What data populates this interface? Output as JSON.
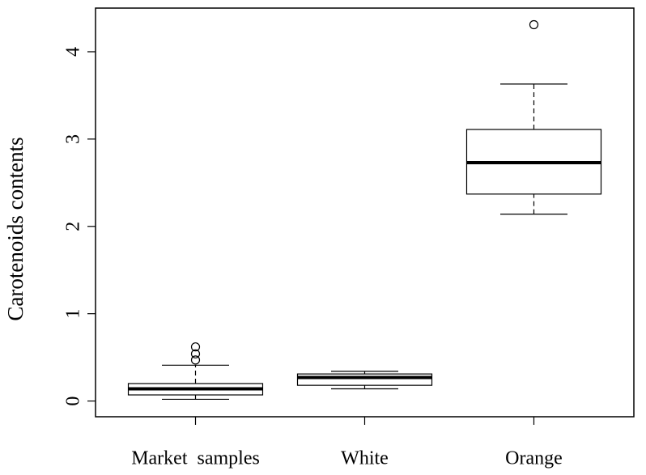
{
  "chart_data": {
    "type": "box",
    "y_label": "Carotenoids contents",
    "categories": [
      "Market  samples",
      "White",
      "Orange"
    ],
    "boxes": [
      {
        "low": 0.02,
        "q1": 0.07,
        "median": 0.14,
        "q3": 0.2,
        "high": 0.41,
        "outliers": [
          0.47,
          0.54,
          0.62
        ]
      },
      {
        "low": 0.14,
        "q1": 0.18,
        "median": 0.27,
        "q3": 0.31,
        "high": 0.34,
        "outliers": []
      },
      {
        "low": 2.14,
        "q1": 2.37,
        "median": 2.73,
        "q3": 3.11,
        "high": 3.63,
        "outliers": [
          4.31
        ]
      }
    ],
    "ylim": [
      -0.18,
      4.5
    ],
    "yticks": [
      0,
      1,
      2,
      3,
      4
    ]
  }
}
